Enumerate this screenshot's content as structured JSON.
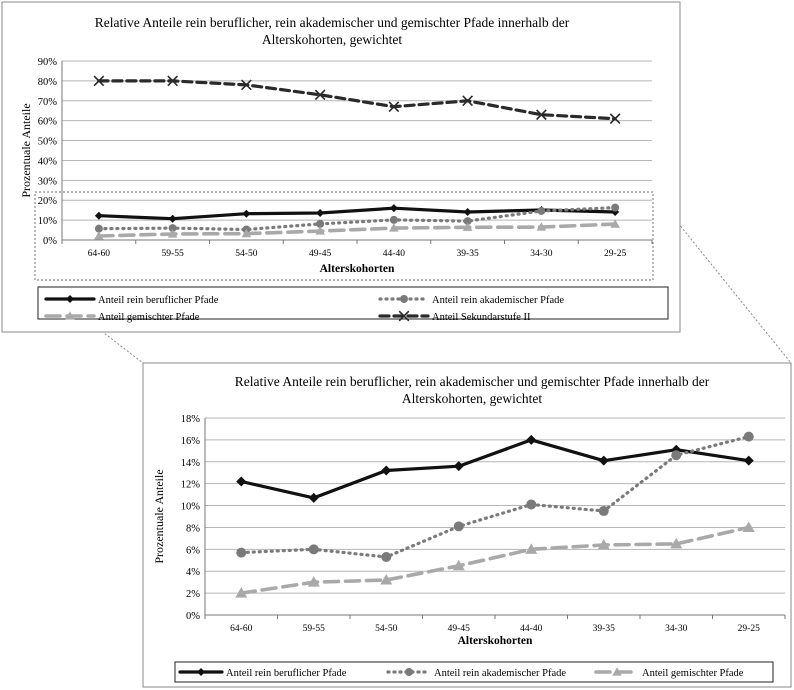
{
  "figure": {
    "charts": [
      {
        "title_line1": "Relative Anteile rein beruflicher, rein akademischer und gemischter Pfade innerhalb der",
        "title_line2": "Alterskohorten, gewichtet"
      },
      {
        "title_line1": "Relative Anteile rein beruflicher, rein akademischer und gemischter Pfade innerhalb der",
        "title_line2": "Alterskohorten, gewichtet"
      }
    ]
  },
  "colors": {
    "beruflich": "#111111",
    "akademisch": "#7a7a7a",
    "gemischt": "#a9a9a9",
    "sekundar": "#2a2a2a",
    "grid": "#b5b5b5",
    "frame": "#8a8a8a"
  },
  "chart_data": [
    {
      "type": "line",
      "title": "Relative Anteile rein beruflicher, rein akademischer und gemischter Pfade innerhalb der Alterskohorten, gewichtet",
      "xlabel": "Alterskohorten",
      "ylabel": "Prozentuale Anteile",
      "categories": [
        "64-60",
        "59-55",
        "54-50",
        "49-45",
        "44-40",
        "39-35",
        "34-30",
        "29-25"
      ],
      "ylim": [
        0,
        90
      ],
      "yticks": [
        "0%",
        "10%",
        "20%",
        "30%",
        "40%",
        "50%",
        "60%",
        "70%",
        "80%",
        "90%"
      ],
      "grid": true,
      "legend_position": "bottom",
      "series": [
        {
          "name": "Anteil rein beruflicher Pfade",
          "values": [
            12.2,
            10.7,
            13.2,
            13.6,
            16.0,
            14.1,
            15.1,
            14.1
          ],
          "style": "solid-diamond"
        },
        {
          "name": "Anteil rein akademischer Pfade",
          "values": [
            5.7,
            6.0,
            5.3,
            8.1,
            10.1,
            9.5,
            14.6,
            16.3
          ],
          "style": "dotted-circle"
        },
        {
          "name": "Anteil gemischter Pfade",
          "values": [
            2.0,
            3.0,
            3.2,
            4.5,
            6.0,
            6.4,
            6.5,
            8.0
          ],
          "style": "dashed-triangle"
        },
        {
          "name": "Anteil Sekundarstufe II",
          "values": [
            80,
            80,
            78,
            73,
            67,
            70,
            63,
            61
          ],
          "style": "dashed-x"
        }
      ]
    },
    {
      "type": "line",
      "title": "Relative Anteile rein beruflicher, rein akademischer und gemischter Pfade innerhalb der Alterskohorten, gewichtet",
      "xlabel": "Alterskohorten",
      "ylabel": "Prozentuale Anteile",
      "categories": [
        "64-60",
        "59-55",
        "54-50",
        "49-45",
        "44-40",
        "39-35",
        "34-30",
        "29-25"
      ],
      "ylim": [
        0,
        18
      ],
      "yticks": [
        "0%",
        "2%",
        "4%",
        "6%",
        "8%",
        "10%",
        "12%",
        "14%",
        "16%",
        "18%"
      ],
      "grid": true,
      "legend_position": "bottom",
      "series": [
        {
          "name": "Anteil rein beruflicher Pfade",
          "values": [
            12.2,
            10.7,
            13.2,
            13.6,
            16.0,
            14.1,
            15.1,
            14.1
          ],
          "style": "solid-diamond"
        },
        {
          "name": "Anteil rein akademischer Pfade",
          "values": [
            5.7,
            6.0,
            5.3,
            8.1,
            10.1,
            9.5,
            14.6,
            16.3
          ],
          "style": "dotted-circle"
        },
        {
          "name": "Anteil gemischter Pfade",
          "values": [
            2.0,
            3.0,
            3.2,
            4.5,
            6.0,
            6.4,
            6.5,
            8.0
          ],
          "style": "dashed-triangle"
        }
      ]
    }
  ]
}
